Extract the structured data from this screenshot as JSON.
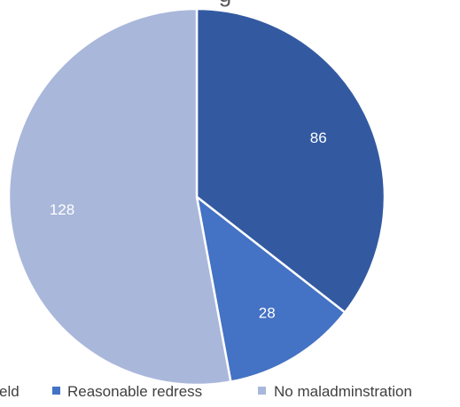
{
  "chart_data": {
    "type": "pie",
    "title": "g",
    "categories": [
      "eld",
      "Reasonable redress",
      "No maladminstration"
    ],
    "values": [
      86,
      28,
      128
    ],
    "colors": [
      "#335aa1",
      "#4472c4",
      "#a9b7da"
    ],
    "slice_stroke": "#ffffff",
    "start_angle_deg": 0,
    "direction": "clockwise",
    "data_labels": [
      "86",
      "28",
      "128"
    ],
    "legend_position": "bottom"
  }
}
